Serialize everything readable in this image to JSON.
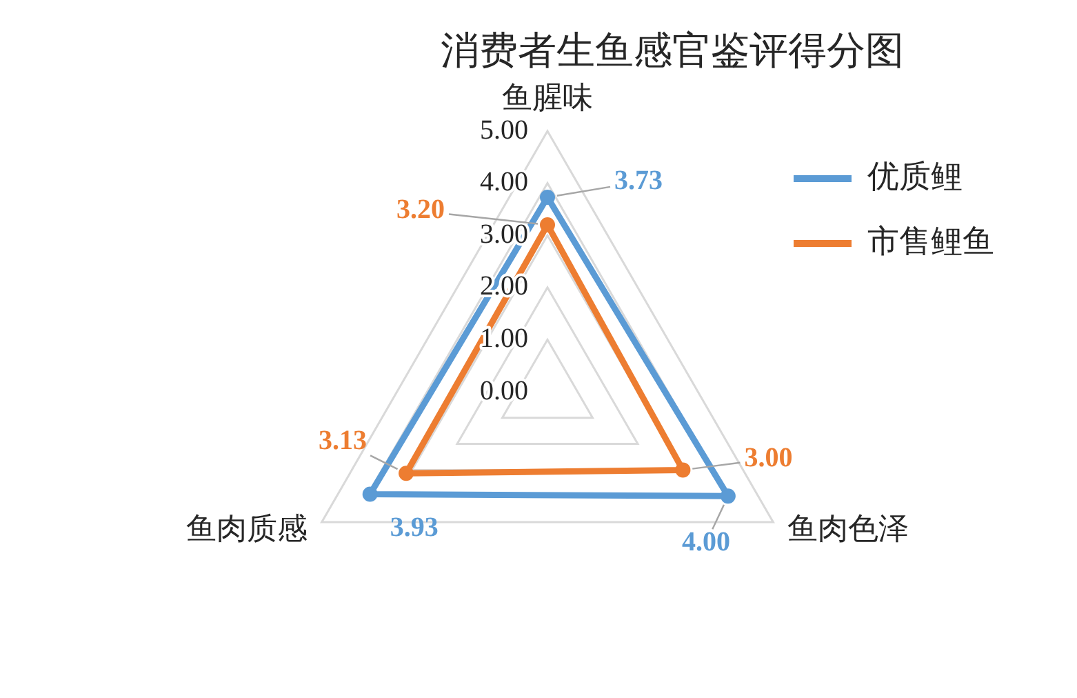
{
  "chart_data": {
    "type": "radar",
    "title": "消费者生鱼感官鉴评得分图",
    "categories": [
      "鱼腥味",
      "鱼肉色泽",
      "鱼肉质感"
    ],
    "series": [
      {
        "name": "优质鲤",
        "color": "#5b9bd5",
        "values": [
          3.73,
          4.0,
          3.93
        ],
        "value_labels": [
          "3.73",
          "4.00",
          "3.93"
        ]
      },
      {
        "name": "市售鲤鱼",
        "color": "#ed7d31",
        "values": [
          3.2,
          3.0,
          3.13
        ],
        "value_labels": [
          "3.20",
          "3.00",
          "3.13"
        ]
      }
    ],
    "ylim": [
      0,
      5
    ],
    "yticks": [
      {
        "value": 0,
        "label": "0.00"
      },
      {
        "value": 1,
        "label": "1.00"
      },
      {
        "value": 2,
        "label": "2.00"
      },
      {
        "value": 3,
        "label": "3.00"
      },
      {
        "value": 4,
        "label": "4.00"
      },
      {
        "value": 5,
        "label": "5.00"
      }
    ],
    "grid": true,
    "legend": "top right",
    "marker": "circle"
  }
}
